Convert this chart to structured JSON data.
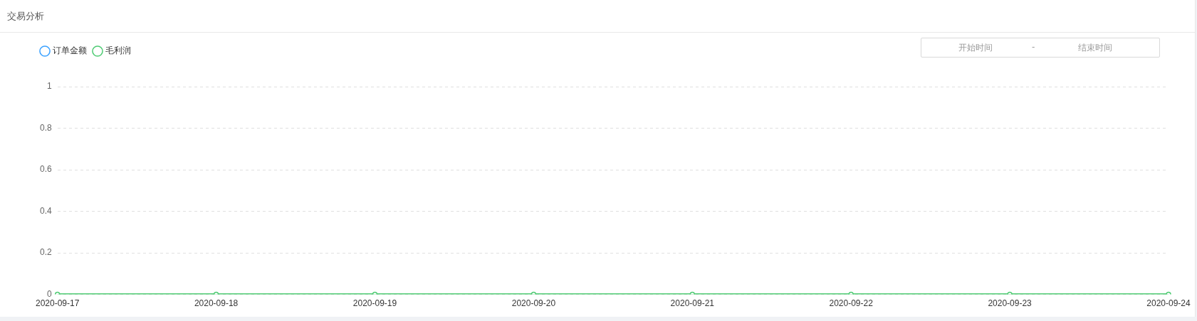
{
  "chart_data": {
    "type": "line",
    "title": "交易分析",
    "categories": [
      "2020-09-17",
      "2020-09-18",
      "2020-09-19",
      "2020-09-20",
      "2020-09-21",
      "2020-09-22",
      "2020-09-23",
      "2020-09-24"
    ],
    "series": [
      {
        "name": "订单金额",
        "color": "#3aa1ff",
        "values": [
          null,
          null,
          null,
          null,
          null,
          null,
          null,
          null
        ]
      },
      {
        "name": "毛利润",
        "color": "#4ecb73",
        "values": [
          0,
          0,
          0,
          0,
          0,
          0,
          0,
          0
        ]
      }
    ],
    "ylim": [
      0,
      1
    ],
    "yticks": [
      0,
      0.2,
      0.4,
      0.6,
      0.8,
      1
    ],
    "grid": "y",
    "legend": "top left",
    "marker": "circle",
    "line_style": "solid",
    "annotations": [
      "开始时间",
      "-",
      "结束时间"
    ]
  }
}
